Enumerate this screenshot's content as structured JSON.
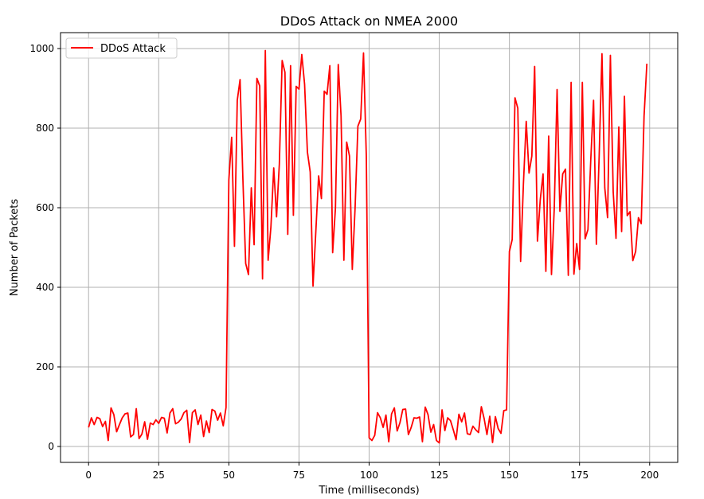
{
  "chart_data": {
    "type": "line",
    "title": "DDoS Attack on NMEA 2000",
    "xlabel": "Time (milliseconds)",
    "ylabel": "Number of Packets",
    "xlim": [
      -10,
      210
    ],
    "ylim": [
      -40,
      1040
    ],
    "xticks": [
      0,
      25,
      50,
      75,
      100,
      125,
      150,
      175,
      200
    ],
    "yticks": [
      0,
      200,
      400,
      600,
      800,
      1000
    ],
    "grid": true,
    "legend_position": "top-left",
    "colors": {
      "series": "#ff0000",
      "grid": "#b0b0b0",
      "axes": "#000000"
    },
    "series": [
      {
        "name": "DDoS Attack",
        "x": [
          0,
          1,
          2,
          3,
          4,
          5,
          6,
          7,
          8,
          9,
          10,
          11,
          12,
          13,
          14,
          15,
          16,
          17,
          18,
          19,
          20,
          21,
          22,
          23,
          24,
          25,
          26,
          27,
          28,
          29,
          30,
          31,
          32,
          33,
          34,
          35,
          36,
          37,
          38,
          39,
          40,
          41,
          42,
          43,
          44,
          45,
          46,
          47,
          48,
          49,
          50,
          51,
          52,
          53,
          54,
          55,
          56,
          57,
          58,
          59,
          60,
          61,
          62,
          63,
          64,
          65,
          66,
          67,
          68,
          69,
          70,
          71,
          72,
          73,
          74,
          75,
          76,
          77,
          78,
          79,
          80,
          81,
          82,
          83,
          84,
          85,
          86,
          87,
          88,
          89,
          90,
          91,
          92,
          93,
          94,
          95,
          96,
          97,
          98,
          99,
          100,
          101,
          102,
          103,
          104,
          105,
          106,
          107,
          108,
          109,
          110,
          111,
          112,
          113,
          114,
          115,
          116,
          117,
          118,
          119,
          120,
          121,
          122,
          123,
          124,
          125,
          126,
          127,
          128,
          129,
          130,
          131,
          132,
          133,
          134,
          135,
          136,
          137,
          138,
          139,
          140,
          141,
          142,
          143,
          144,
          145,
          146,
          147,
          148,
          149,
          150,
          151,
          152,
          153,
          154,
          155,
          156,
          157,
          158,
          159,
          160,
          161,
          162,
          163,
          164,
          165,
          166,
          167,
          168,
          169,
          170,
          171,
          172,
          173,
          174,
          175,
          176,
          177,
          178,
          179,
          180,
          181,
          182,
          183,
          184,
          185,
          186,
          187,
          188,
          189,
          190,
          191,
          192,
          193,
          194,
          195,
          196,
          197,
          198,
          199
        ],
        "y": [
          48,
          72,
          55,
          73,
          70,
          50,
          63,
          15,
          97,
          80,
          37,
          55,
          72,
          82,
          84,
          24,
          30,
          95,
          20,
          31,
          62,
          18,
          59,
          55,
          67,
          58,
          73,
          71,
          34,
          84,
          95,
          57,
          61,
          69,
          85,
          91,
          10,
          85,
          92,
          55,
          79,
          25,
          64,
          35,
          93,
          89,
          66,
          84,
          52,
          98,
          670,
          777,
          503,
          870,
          922,
          673,
          460,
          432,
          650,
          507,
          925,
          906,
          421,
          995,
          468,
          552,
          700,
          577,
          710,
          970,
          940,
          533,
          957,
          581,
          905,
          898,
          985,
          910,
          740,
          690,
          403,
          540,
          680,
          623,
          893,
          885,
          957,
          487,
          600,
          960,
          830,
          468,
          765,
          730,
          445,
          600,
          805,
          823,
          989,
          730,
          22,
          15,
          28,
          85,
          72,
          48,
          79,
          12,
          82,
          97,
          39,
          60,
          93,
          94,
          30,
          48,
          72,
          71,
          74,
          12,
          99,
          80,
          36,
          55,
          15,
          9,
          92,
          40,
          72,
          65,
          42,
          17,
          81,
          62,
          84,
          32,
          30,
          51,
          42,
          35,
          100,
          70,
          30,
          76,
          10,
          75,
          45,
          33,
          90,
          92,
          490,
          520,
          876,
          850,
          465,
          660,
          817,
          687,
          730,
          955,
          516,
          620,
          685,
          440,
          780,
          432,
          600,
          897,
          591,
          685,
          697,
          430,
          915,
          433,
          510,
          445,
          915,
          522,
          545,
          720,
          870,
          508,
          730,
          987,
          650,
          575,
          983,
          640,
          523,
          803,
          540,
          880,
          580,
          590,
          467,
          490,
          575,
          560,
          830,
          962
        ]
      }
    ]
  }
}
